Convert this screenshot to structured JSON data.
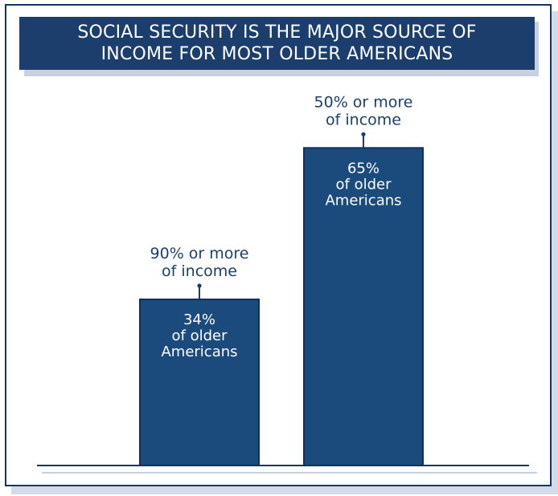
{
  "title_lines": [
    "SOCIAL SECURITY IS THE MAJOR SOURCE OF",
    "INCOME FOR MOST OLDER AMERICANS"
  ],
  "colors": {
    "bar": "#1b4a7c",
    "bar_edge": "#10305a",
    "title_bg": "#1b3e6c",
    "text": "#1b3e6c",
    "baseline": "#14365f"
  },
  "chart_data": {
    "type": "bar",
    "title": "SOCIAL SECURITY IS THE MAJOR SOURCE OF INCOME FOR MOST OLDER AMERICANS",
    "categories": [
      "90% or more of income",
      "50% or more of income"
    ],
    "values": [
      34,
      65
    ],
    "unit": "%",
    "ylim": [
      0,
      80
    ],
    "grid": false,
    "bars": [
      {
        "category_lines": [
          "90% or more",
          "of income"
        ],
        "value_lines": [
          "34%",
          "of older",
          "Americans"
        ]
      },
      {
        "category_lines": [
          "50% or more",
          "of income"
        ],
        "value_lines": [
          "65%",
          "of older",
          "Americans"
        ]
      }
    ]
  }
}
